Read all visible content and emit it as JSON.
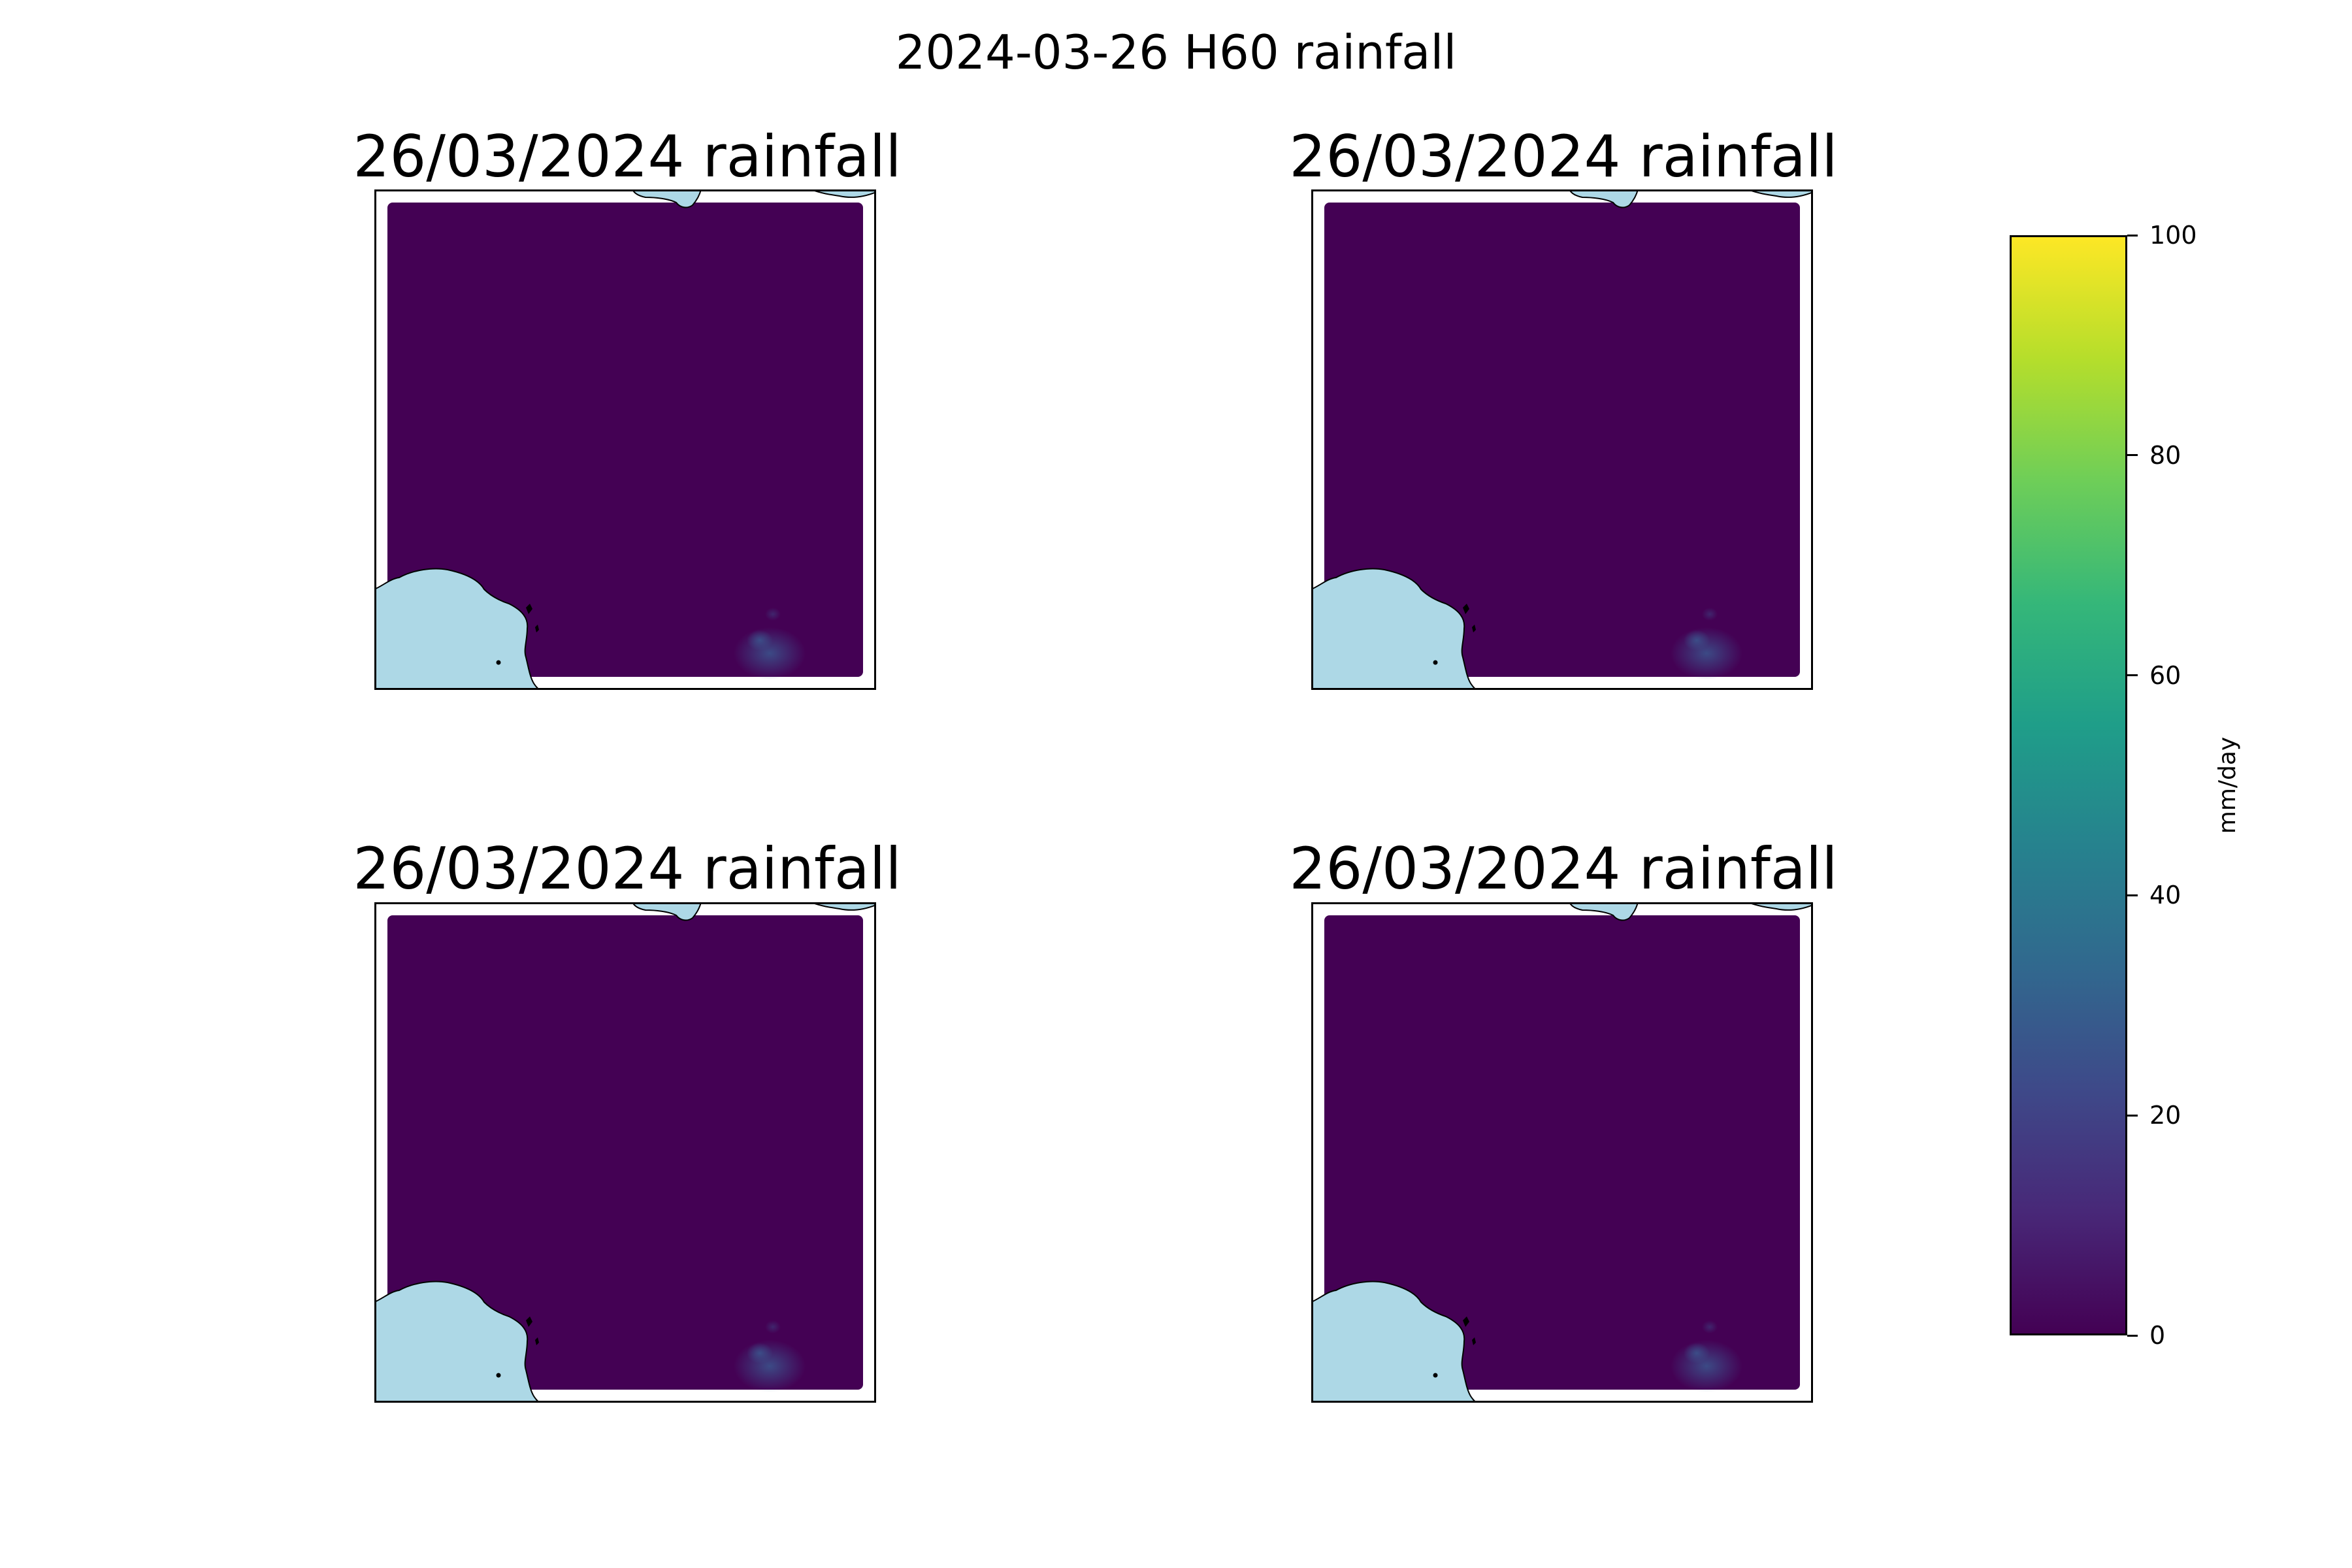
{
  "figure": {
    "title": "2024-03-26 H60 rainfall"
  },
  "panels": [
    {
      "title": "26/03/2024 rainfall"
    },
    {
      "title": "26/03/2024 rainfall"
    },
    {
      "title": "26/03/2024 rainfall"
    },
    {
      "title": "26/03/2024 rainfall"
    }
  ],
  "map_style": {
    "rain_background_color": "#440154",
    "water_color": "#add8e6",
    "coastline_color": "#000000",
    "frame_color": "#000000",
    "rain_cell_color": "#3b528b"
  },
  "colorbar": {
    "label": "mm/day",
    "min": 0,
    "max": 100,
    "ticks": [
      "0",
      "20",
      "40",
      "60",
      "80",
      "100"
    ],
    "colormap": "viridis",
    "stops": [
      "#440154",
      "#482878",
      "#3e4989",
      "#31688e",
      "#26828e",
      "#1f9e89",
      "#35b779",
      "#6ece58",
      "#b5de2b",
      "#fde725"
    ]
  }
}
